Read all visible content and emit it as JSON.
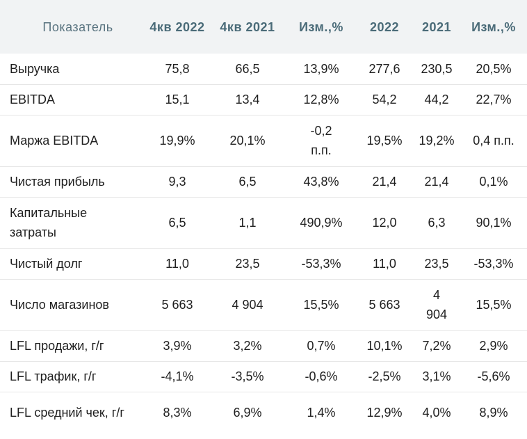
{
  "headers": [
    "Показатель",
    "4кв 2022",
    "4кв 2021",
    "Изм.,%",
    "2022",
    "2021",
    "Изм.,%"
  ],
  "rows": [
    {
      "label": "Выручка",
      "values": [
        "75,8",
        "66,5",
        "13,9%",
        "277,6",
        "230,5",
        "20,5%"
      ]
    },
    {
      "label": "EBITDA",
      "values": [
        "15,1",
        "13,4",
        "12,8%",
        "54,2",
        "44,2",
        "22,7%"
      ]
    },
    {
      "label": "Маржа EBITDA",
      "values": [
        "19,9%",
        "20,1%",
        "-0,2 п.п.",
        "19,5%",
        "19,2%",
        "0,4 п.п."
      ]
    },
    {
      "label": "Чистая прибыль",
      "values": [
        "9,3",
        "6,5",
        "43,8%",
        "21,4",
        "21,4",
        "0,1%"
      ]
    },
    {
      "label": "Капитальные затраты",
      "values": [
        "6,5",
        "1,1",
        "490,9%",
        "12,0",
        "6,3",
        "90,1%"
      ]
    },
    {
      "label": "Чистый долг",
      "values": [
        "11,0",
        "23,5",
        "-53,3%",
        "11,0",
        "23,5",
        "-53,3%"
      ]
    },
    {
      "label": "Число магазинов",
      "values": [
        "5 663",
        "4 904",
        "15,5%",
        "5 663",
        "4 904",
        "15,5%"
      ]
    },
    {
      "label": "LFL продажи, г/г",
      "values": [
        "3,9%",
        "3,2%",
        "0,7%",
        "10,1%",
        "7,2%",
        "2,9%"
      ]
    },
    {
      "label": "LFL трафик, г/г",
      "values": [
        "-4,1%",
        "-3,5%",
        "-0,6%",
        "-2,5%",
        "3,1%",
        "-5,6%"
      ]
    },
    {
      "label": "LFL средний чек, г/г",
      "values": [
        "8,3%",
        "6,9%",
        "1,4%",
        "12,9%",
        "4,0%",
        "8,9%"
      ]
    }
  ]
}
